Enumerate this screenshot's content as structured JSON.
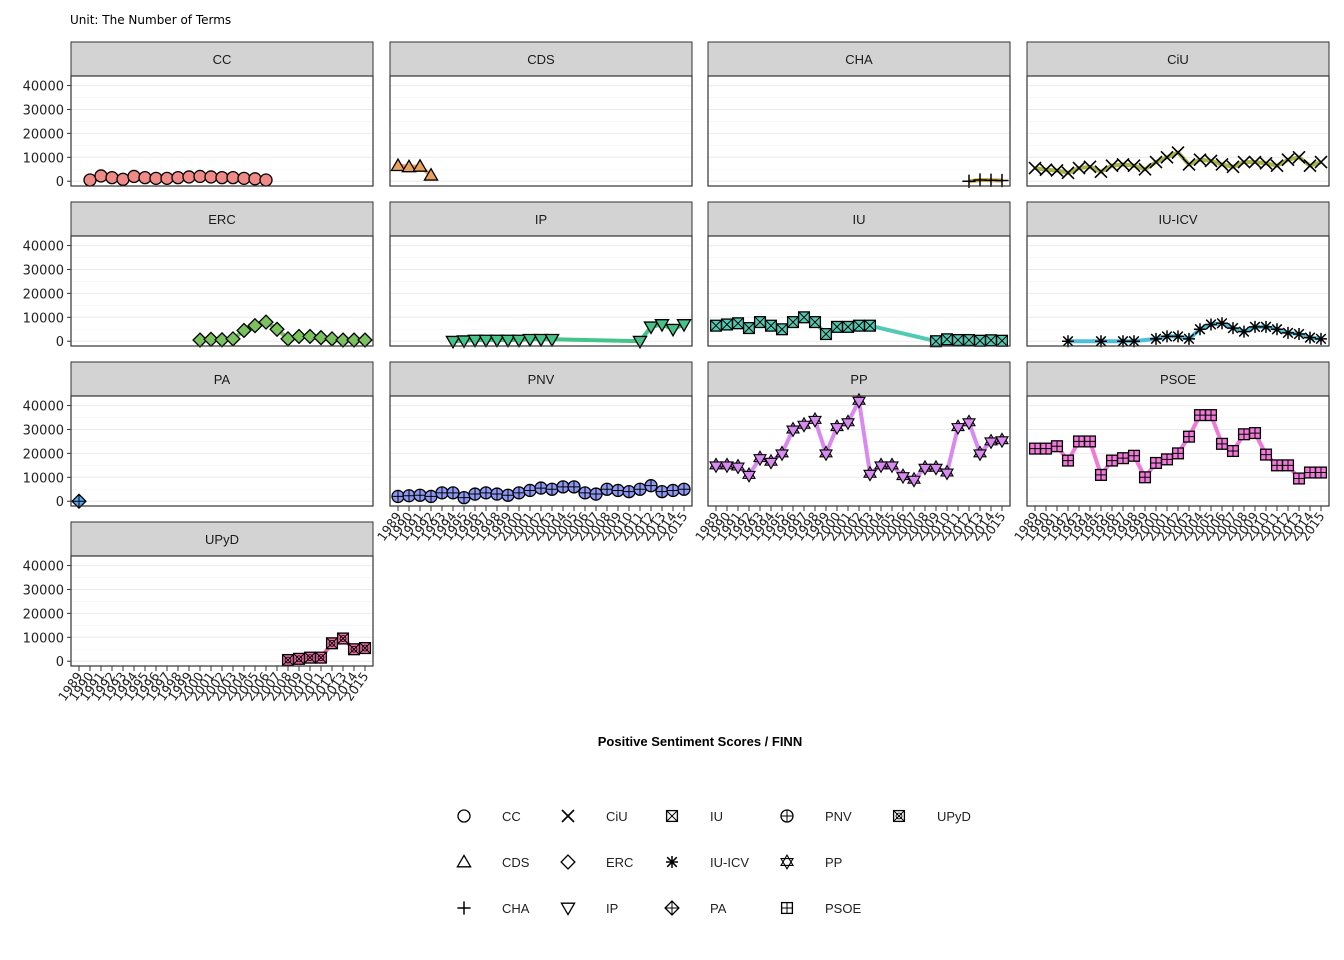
{
  "chart_data": {
    "type": "line",
    "subtitle": "Unit: The Number of Terms",
    "xlabel": "Positive Sentiment Scores / FINN",
    "ylabel": "",
    "ylim": [
      -2000,
      44000
    ],
    "yticks": [
      0,
      10000,
      20000,
      30000,
      40000
    ],
    "xlim": [
      1989,
      2015
    ],
    "x_tick_labels": [
      "1989",
      "1990",
      "1991",
      "1992",
      "1993",
      "1994",
      "1995",
      "1996",
      "1997",
      "1998",
      "1999",
      "2000",
      "2001",
      "2002",
      "2003",
      "2004",
      "2005",
      "2006",
      "2007",
      "2008",
      "2009",
      "2010",
      "2011",
      "2012",
      "2013",
      "2014",
      "2015"
    ],
    "grid": true,
    "legend_position": "bottom",
    "colors": {
      "CC": "#f08a86",
      "CDS": "#e8a15c",
      "CHA": "#c9a83f",
      "CiU": "#a8b545",
      "ERC": "#79c25e",
      "IP": "#45c48a",
      "IU": "#52c9b3",
      "IU-ICV": "#4dbfdc",
      "PA": "#55a9f0",
      "PNV": "#8d98f2",
      "PP": "#d98af0",
      "PSOE": "#f07ad8",
      "UPyD": "#f26fa8"
    },
    "series": [
      {
        "name": "CC",
        "shape": "circle",
        "x": [
          1990,
          1991,
          1992,
          1993,
          1994,
          1995,
          1996,
          1997,
          1998,
          1999,
          2000,
          2001,
          2002,
          2003,
          2004,
          2005,
          2006
        ],
        "y": [
          500,
          2200,
          1500,
          800,
          2000,
          1500,
          1200,
          1200,
          1500,
          1800,
          2000,
          1800,
          1500,
          1500,
          1200,
          1000,
          500
        ]
      },
      {
        "name": "CDS",
        "shape": "triangle-up",
        "x": [
          1989,
          1990,
          1991,
          1992
        ],
        "y": [
          6500,
          6000,
          6200,
          2500
        ]
      },
      {
        "name": "CHA",
        "shape": "plus",
        "x": [
          2012,
          2013,
          2014,
          2015
        ],
        "y": [
          0,
          500,
          400,
          300
        ]
      },
      {
        "name": "CiU",
        "shape": "cross",
        "x": [
          1989,
          1990,
          1991,
          1992,
          1993,
          1994,
          1995,
          1996,
          1997,
          1998,
          1999,
          2000,
          2001,
          2002,
          2003,
          2004,
          2005,
          2006,
          2007,
          2008,
          2009,
          2010,
          2011,
          2012,
          2013,
          2014,
          2015
        ],
        "y": [
          5500,
          4800,
          4500,
          3500,
          5500,
          6000,
          4000,
          6500,
          7000,
          6500,
          5000,
          8000,
          10000,
          12000,
          7000,
          9000,
          8500,
          7000,
          6000,
          8000,
          8000,
          7500,
          6500,
          9000,
          10000,
          6500,
          8000
        ]
      },
      {
        "name": "ERC",
        "shape": "diamond",
        "x": [
          2000,
          2001,
          2002,
          2003,
          2004,
          2005,
          2006,
          2007,
          2008,
          2009,
          2010,
          2011,
          2012,
          2013,
          2014,
          2015
        ],
        "y": [
          500,
          800,
          600,
          1000,
          4500,
          6500,
          8000,
          5000,
          1000,
          2000,
          2000,
          1500,
          1000,
          500,
          500,
          500
        ]
      },
      {
        "name": "IP",
        "shape": "triangle-down",
        "x": [
          1994,
          1995,
          1996,
          1997,
          1998,
          1999,
          2000,
          2001,
          2002,
          2003,
          2011,
          2012,
          2013,
          2014,
          2015
        ],
        "y": [
          0,
          200,
          500,
          500,
          500,
          500,
          500,
          800,
          800,
          800,
          0,
          6000,
          7000,
          5000,
          7000
        ]
      },
      {
        "name": "IU",
        "shape": "square-cross",
        "x": [
          1989,
          1990,
          1991,
          1992,
          1993,
          1994,
          1995,
          1996,
          1997,
          1998,
          1999,
          2000,
          2001,
          2002,
          2003,
          2009,
          2010,
          2011,
          2012,
          2013,
          2014,
          2015
        ],
        "y": [
          6500,
          7000,
          7500,
          5500,
          8000,
          6500,
          5000,
          8000,
          10000,
          8000,
          3000,
          6000,
          6000,
          6500,
          6500,
          0,
          800,
          500,
          500,
          200,
          400,
          200
        ]
      },
      {
        "name": "IU-ICV",
        "shape": "asterisk",
        "x": [
          1992,
          1995,
          1997,
          1998,
          2000,
          2001,
          2002,
          2003,
          2004,
          2005,
          2006,
          2007,
          2008,
          2009,
          2010,
          2011,
          2012,
          2013,
          2014,
          2015
        ],
        "y": [
          0,
          0,
          0,
          0,
          1000,
          2000,
          2000,
          1000,
          5000,
          7000,
          7500,
          5500,
          4000,
          6000,
          6000,
          5000,
          3500,
          3000,
          1500,
          1000
        ]
      },
      {
        "name": "PA",
        "shape": "circle-plus-diamond",
        "x": [
          1989
        ],
        "y": [
          0
        ]
      },
      {
        "name": "PNV",
        "shape": "circle-plus",
        "x": [
          1989,
          1990,
          1991,
          1992,
          1993,
          1994,
          1995,
          1996,
          1997,
          1998,
          1999,
          2000,
          2001,
          2002,
          2003,
          2004,
          2005,
          2006,
          2007,
          2008,
          2009,
          2010,
          2011,
          2012,
          2013,
          2014,
          2015
        ],
        "y": [
          2000,
          2300,
          2500,
          2000,
          3500,
          3500,
          1500,
          3000,
          3500,
          3000,
          2500,
          3500,
          4500,
          5500,
          5000,
          6000,
          6000,
          3500,
          3000,
          5000,
          4500,
          4000,
          5000,
          6500,
          4000,
          4500,
          5000
        ]
      },
      {
        "name": "PP",
        "shape": "star-of-david",
        "x": [
          1989,
          1990,
          1991,
          1992,
          1993,
          1994,
          1995,
          1996,
          1997,
          1998,
          1999,
          2000,
          2001,
          2002,
          2003,
          2004,
          2005,
          2006,
          2007,
          2008,
          2009,
          2010,
          2011,
          2012,
          2013,
          2014,
          2015
        ],
        "y": [
          15000,
          15000,
          14500,
          11000,
          18000,
          16500,
          20000,
          30000,
          32000,
          34000,
          20000,
          31000,
          33000,
          42000,
          11500,
          15000,
          15000,
          10500,
          9000,
          14000,
          14000,
          12000,
          31000,
          33000,
          20000,
          25000,
          25500
        ]
      },
      {
        "name": "PSOE",
        "shape": "square-plus",
        "x": [
          1989,
          1990,
          1991,
          1992,
          1993,
          1994,
          1995,
          1996,
          1997,
          1998,
          1999,
          2000,
          2001,
          2002,
          2003,
          2004,
          2005,
          2006,
          2007,
          2008,
          2009,
          2010,
          2011,
          2012,
          2013,
          2014,
          2015
        ],
        "y": [
          22000,
          22000,
          23000,
          17000,
          25000,
          25000,
          11000,
          17000,
          18000,
          19000,
          10000,
          16000,
          17500,
          20000,
          27000,
          36000,
          36000,
          24000,
          21000,
          28000,
          28500,
          19500,
          15000,
          15000,
          9500,
          12000,
          12000
        ]
      },
      {
        "name": "UPyD",
        "shape": "square-x",
        "x": [
          2008,
          2009,
          2010,
          2011,
          2012,
          2013,
          2014,
          2015
        ],
        "y": [
          500,
          1000,
          1500,
          1500,
          7500,
          9500,
          5000,
          5500
        ]
      }
    ]
  }
}
